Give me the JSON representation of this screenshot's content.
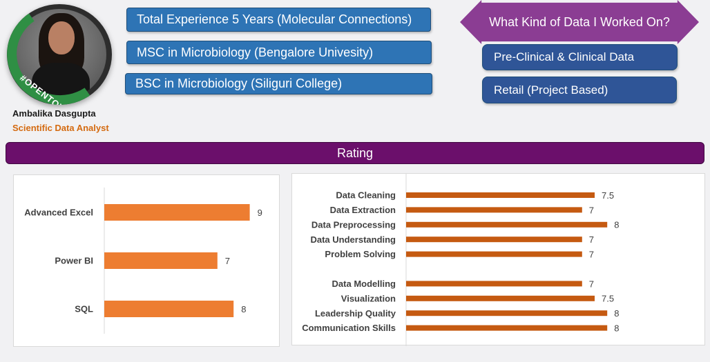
{
  "profile": {
    "name": "Ambalika Dasgupta",
    "role": "Scientific Data Analyst",
    "badge_text": "#OPENTOWORK",
    "badge_color": "#2f8f44"
  },
  "education": [
    "Total Experience 5 Years (Molecular Connections)",
    "MSC in Microbiology (Bengalore Univesity)",
    "BSC in Microbiology (Siliguri College)"
  ],
  "data_worked_on": {
    "title": "What Kind of Data I Worked On?",
    "items": [
      "Pre-Clinical & Clinical Data",
      "Retail (Project Based)"
    ]
  },
  "rating_title": "Rating",
  "colors": {
    "pill": "#2e74b5",
    "pill_dark": "#2f5597",
    "arrow": "#8b3d93",
    "rating_bar": "#6b0f6b",
    "tools_bar": "#ed7d31",
    "skills_bar": "#c55a11",
    "name_accent": "#d46a10"
  },
  "chart_data": [
    {
      "type": "bar",
      "orientation": "horizontal",
      "categories": [
        "Advanced Excel",
        "Power BI",
        "SQL"
      ],
      "values": [
        9,
        7,
        8
      ],
      "xlim": [
        0,
        10
      ],
      "grid": false
    },
    {
      "type": "bar",
      "orientation": "horizontal",
      "categories": [
        "Data Cleaning",
        "Data Extraction",
        "Data Preprocessing",
        "Data Understanding",
        "Problem Solving",
        "",
        "Data Modelling",
        "Visualization",
        "Leadership Quality",
        "Communication Skills"
      ],
      "values": [
        7.5,
        7,
        8,
        7,
        7,
        null,
        7,
        7.5,
        8,
        8
      ],
      "xlim": [
        0,
        10
      ],
      "grid": false
    }
  ]
}
